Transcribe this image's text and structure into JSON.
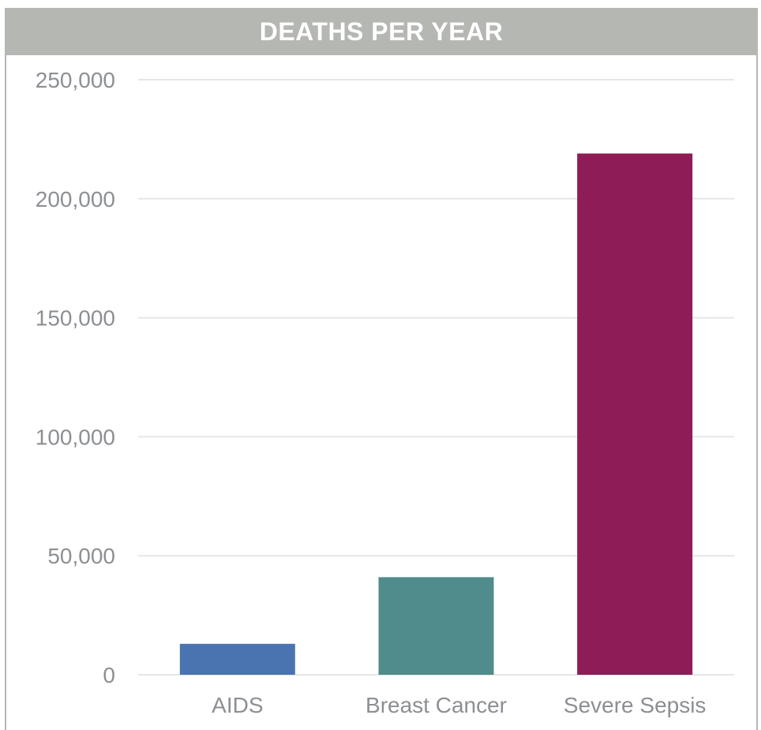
{
  "chart_data": {
    "type": "bar",
    "title": "DEATHS PER YEAR",
    "categories": [
      "AIDS",
      "Breast Cancer",
      "Severe Sepsis"
    ],
    "values": [
      13000,
      41000,
      219000
    ],
    "colors": [
      "#4a74b0",
      "#4f8c8b",
      "#8e1c57"
    ],
    "ylim": [
      0,
      250000
    ],
    "yticks": [
      0,
      50000,
      100000,
      150000,
      200000,
      250000
    ],
    "ytick_labels": [
      "0",
      "50,000",
      "100,000",
      "150,000",
      "200,000",
      "250,000"
    ],
    "grid": true,
    "legend": "none"
  },
  "colors": {
    "header_bg": "#b5b7b3",
    "grid": "#e6e6e6",
    "text": "#8c8f93"
  }
}
